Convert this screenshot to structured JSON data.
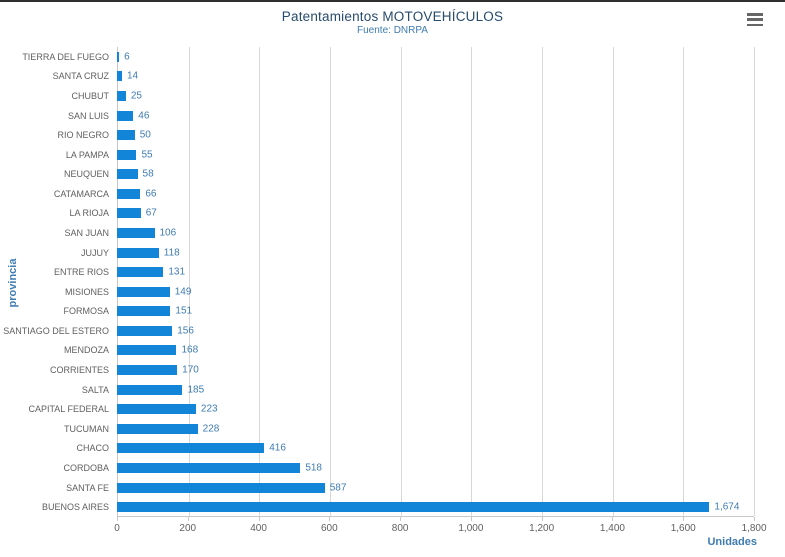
{
  "chart_data": {
    "type": "bar",
    "orientation": "horizontal",
    "title": "Patentamientos MOTOVEHÍCULOS",
    "subtitle": "Fuente: DNRPA",
    "xlabel": "Unidades",
    "ylabel": "provincia",
    "xlim": [
      0,
      1800
    ],
    "grid": true,
    "legend": "none",
    "x_ticks": [
      "0",
      "200",
      "400",
      "600",
      "800",
      "1,000",
      "1,200",
      "1,400",
      "1,600",
      "1,800"
    ],
    "categories": [
      "TIERRA DEL FUEGO",
      "SANTA CRUZ",
      "CHUBUT",
      "SAN LUIS",
      "RIO NEGRO",
      "LA PAMPA",
      "NEUQUEN",
      "CATAMARCA",
      "LA RIOJA",
      "SAN JUAN",
      "JUJUY",
      "ENTRE RIOS",
      "MISIONES",
      "FORMOSA",
      "SANTIAGO DEL ESTERO",
      "MENDOZA",
      "CORRIENTES",
      "SALTA",
      "CAPITAL FEDERAL",
      "TUCUMAN",
      "CHACO",
      "CORDOBA",
      "SANTA FE",
      "BUENOS AIRES"
    ],
    "values": [
      6,
      14,
      25,
      46,
      50,
      55,
      58,
      66,
      67,
      106,
      118,
      131,
      149,
      151,
      156,
      168,
      170,
      185,
      223,
      228,
      416,
      518,
      587,
      1674
    ],
    "value_labels": [
      "6",
      "14",
      "25",
      "46",
      "50",
      "55",
      "58",
      "66",
      "67",
      "106",
      "118",
      "131",
      "149",
      "151",
      "156",
      "168",
      "170",
      "185",
      "223",
      "228",
      "416",
      "518",
      "587",
      "1,674"
    ]
  },
  "export_menu": {
    "icon": "hamburger-icon"
  },
  "colors": {
    "bar": "#1385d8",
    "title": "#274b6d",
    "accent": "#3e7cb1",
    "axis_label": "#606060",
    "grid": "#d8d8d8",
    "axis_line": "#c8c8c8",
    "border_top": "#2f2f2f",
    "menu_icon": "#666666"
  }
}
